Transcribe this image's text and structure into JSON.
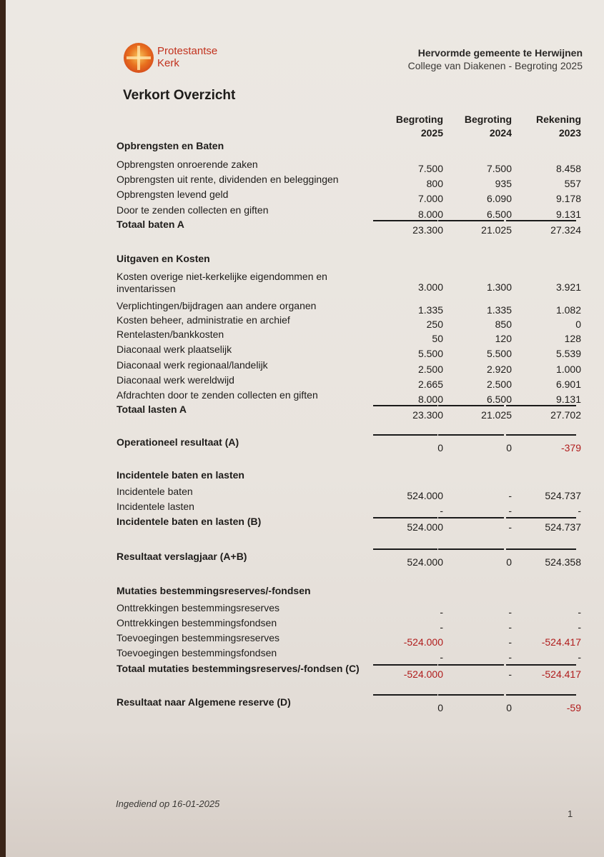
{
  "header": {
    "brand_line1": "Protestantse",
    "brand_line2": "Kerk",
    "organization": "Hervormde gemeente te Herwijnen",
    "subtitle": "College van Diakenen - Begroting 2025"
  },
  "title": "Verkort Overzicht",
  "columns": [
    {
      "line1": "Begroting",
      "line2": "2025"
    },
    {
      "line1": "Begroting",
      "line2": "2024"
    },
    {
      "line1": "Rekening",
      "line2": "2023"
    }
  ],
  "sections": [
    {
      "heading": "Opbrengsten en Baten",
      "rows": [
        {
          "label": "Opbrengsten onroerende zaken",
          "values": [
            "7.500",
            "7.500",
            "8.458"
          ]
        },
        {
          "label": "Opbrengsten uit rente, dividenden en beleggingen",
          "values": [
            "800",
            "935",
            "557"
          ]
        },
        {
          "label": "Opbrengsten levend geld",
          "values": [
            "7.000",
            "6.090",
            "9.178"
          ]
        },
        {
          "label": "Door te zenden collecten en giften",
          "values": [
            "8.000",
            "6.500",
            "9.131"
          ]
        }
      ],
      "total": {
        "label": "Totaal baten A",
        "values": [
          "23.300",
          "21.025",
          "27.324"
        ]
      }
    },
    {
      "heading": "Uitgaven en Kosten",
      "rows": [
        {
          "label": "Kosten overige niet-kerkelijke eigendommen en",
          "label2": "inventarissen",
          "values": [
            "3.000",
            "1.300",
            "3.921"
          ]
        },
        {
          "label": "Verplichtingen/bijdragen aan andere organen",
          "values": [
            "1.335",
            "1.335",
            "1.082"
          ]
        },
        {
          "label": "Kosten beheer, administratie en archief",
          "values": [
            "250",
            "850",
            "0"
          ]
        },
        {
          "label": "Rentelasten/bankkosten",
          "values": [
            "50",
            "120",
            "128"
          ]
        },
        {
          "label": "Diaconaal werk plaatselijk",
          "values": [
            "5.500",
            "5.500",
            "5.539"
          ]
        },
        {
          "label": "Diaconaal werk regionaal/landelijk",
          "values": [
            "2.500",
            "2.920",
            "1.000"
          ]
        },
        {
          "label": "Diaconaal werk wereldwijd",
          "values": [
            "2.665",
            "2.500",
            "6.901"
          ]
        },
        {
          "label": "Afdrachten door te zenden collecten en giften",
          "values": [
            "8.000",
            "6.500",
            "9.131"
          ]
        }
      ],
      "total": {
        "label": "Totaal lasten A",
        "values": [
          "23.300",
          "21.025",
          "27.702"
        ]
      }
    },
    {
      "heading": "",
      "rows": [],
      "total": {
        "label": "Operationeel resultaat (A)",
        "values": [
          "0",
          "0",
          "-379"
        ]
      }
    },
    {
      "heading": "Incidentele baten en lasten",
      "rows": [
        {
          "label": "Incidentele baten",
          "values": [
            "524.000",
            "-",
            "524.737"
          ]
        },
        {
          "label": "Incidentele lasten",
          "values": [
            "-",
            "-",
            "-"
          ]
        }
      ],
      "total": {
        "label": "Incidentele baten en lasten (B)",
        "values": [
          "524.000",
          "-",
          "524.737"
        ]
      }
    },
    {
      "heading": "",
      "rows": [],
      "total": {
        "label": "Resultaat verslagjaar (A+B)",
        "values": [
          "524.000",
          "0",
          "524.358"
        ]
      }
    },
    {
      "heading": "Mutaties bestemmingsreserves/-fondsen",
      "rows": [
        {
          "label": "Onttrekkingen bestemmingsreserves",
          "values": [
            "-",
            "-",
            "-"
          ]
        },
        {
          "label": "Onttrekkingen bestemmingsfondsen",
          "values": [
            "-",
            "-",
            "-"
          ]
        },
        {
          "label": "Toevoegingen bestemmingsreserves",
          "values": [
            "-524.000",
            "-",
            "-524.417"
          ]
        },
        {
          "label": "Toevoegingen bestemmingsfondsen",
          "values": [
            "-",
            "-",
            "-"
          ]
        }
      ],
      "total": {
        "label": "Totaal mutaties bestemmingsreserves/-fondsen (C)",
        "values": [
          "-524.000",
          "-",
          "-524.417"
        ]
      }
    },
    {
      "heading": "",
      "rows": [],
      "total": {
        "label": "Resultaat naar Algemene reserve (D)",
        "values": [
          "0",
          "0",
          "-59"
        ]
      }
    }
  ],
  "footer": {
    "submitted": "Ingediend op 16-01-2025",
    "page_number": "1"
  },
  "colors": {
    "brand": "#c2321d",
    "negative": "#b01c1c"
  }
}
